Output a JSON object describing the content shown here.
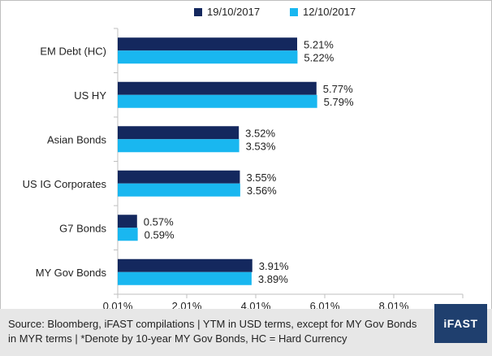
{
  "colors": {
    "series_0": "#14285e",
    "series_1": "#19b7f0",
    "axis": "#bfbfbf",
    "footer_bg": "#e7e7e7",
    "logo_bg": "#1f3f6e"
  },
  "logo": {
    "text": "iFAST"
  },
  "footer": {
    "source_line1": "Source: Bloomberg, iFAST compilations | YTM in USD terms, except for MY Gov Bonds",
    "source_line2": "in MYR terms | *Denote by 10-year MY Gov Bonds, HC = Hard Currency"
  },
  "chart_data": {
    "type": "bar",
    "orientation": "horizontal",
    "categories": [
      "EM Debt (HC)",
      "US HY",
      "Asian Bonds",
      "US IG Corporates",
      "G7 Bonds",
      "MY Gov Bonds"
    ],
    "series": [
      {
        "name": "19/10/2017",
        "values": [
          5.21,
          5.77,
          3.52,
          3.55,
          0.57,
          3.91
        ],
        "labels": [
          "5.21%",
          "5.77%",
          "3.52%",
          "3.55%",
          "0.57%",
          "3.91%"
        ]
      },
      {
        "name": "12/10/2017",
        "values": [
          5.22,
          5.79,
          3.53,
          3.56,
          0.59,
          3.89
        ],
        "labels": [
          "5.22%",
          "5.79%",
          "3.53%",
          "3.56%",
          "0.59%",
          "3.89%"
        ]
      }
    ],
    "xlim": [
      0.01,
      10.01
    ],
    "xticks": [
      0.01,
      2.01,
      4.01,
      6.01,
      8.01
    ],
    "xtick_labels": [
      "0.01%",
      "2.01%",
      "4.01%",
      "6.01%",
      "8.01%"
    ],
    "legend_position": "top-center",
    "grid": false
  }
}
